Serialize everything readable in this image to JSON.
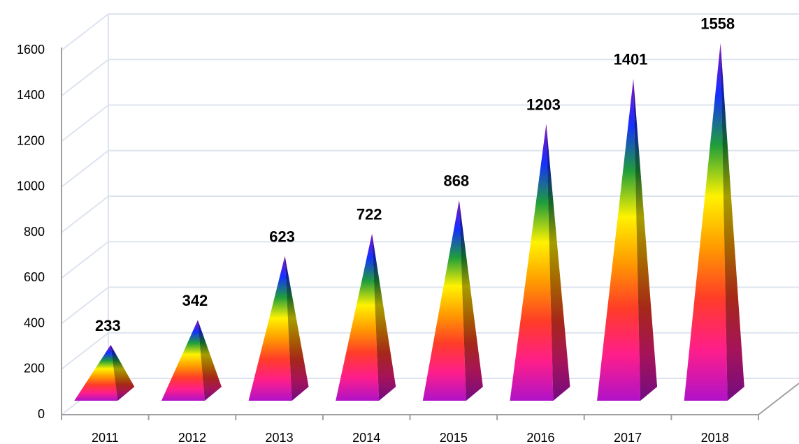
{
  "chart_data": {
    "type": "pyramid",
    "categories": [
      "2011",
      "2012",
      "2013",
      "2014",
      "2015",
      "2016",
      "2017",
      "2018"
    ],
    "values": [
      233,
      342,
      623,
      722,
      868,
      1203,
      1401,
      1558
    ],
    "ylim": [
      0,
      1600
    ],
    "yticks": [
      0,
      200,
      400,
      600,
      800,
      1000,
      1200,
      1400,
      1600
    ],
    "grid": true,
    "colors": [
      "#b012c8",
      "#ff1e8a",
      "#ff3c28",
      "#ff9a00",
      "#fff200",
      "#1f9e3a",
      "#1430ff",
      "#8a10c8"
    ]
  }
}
